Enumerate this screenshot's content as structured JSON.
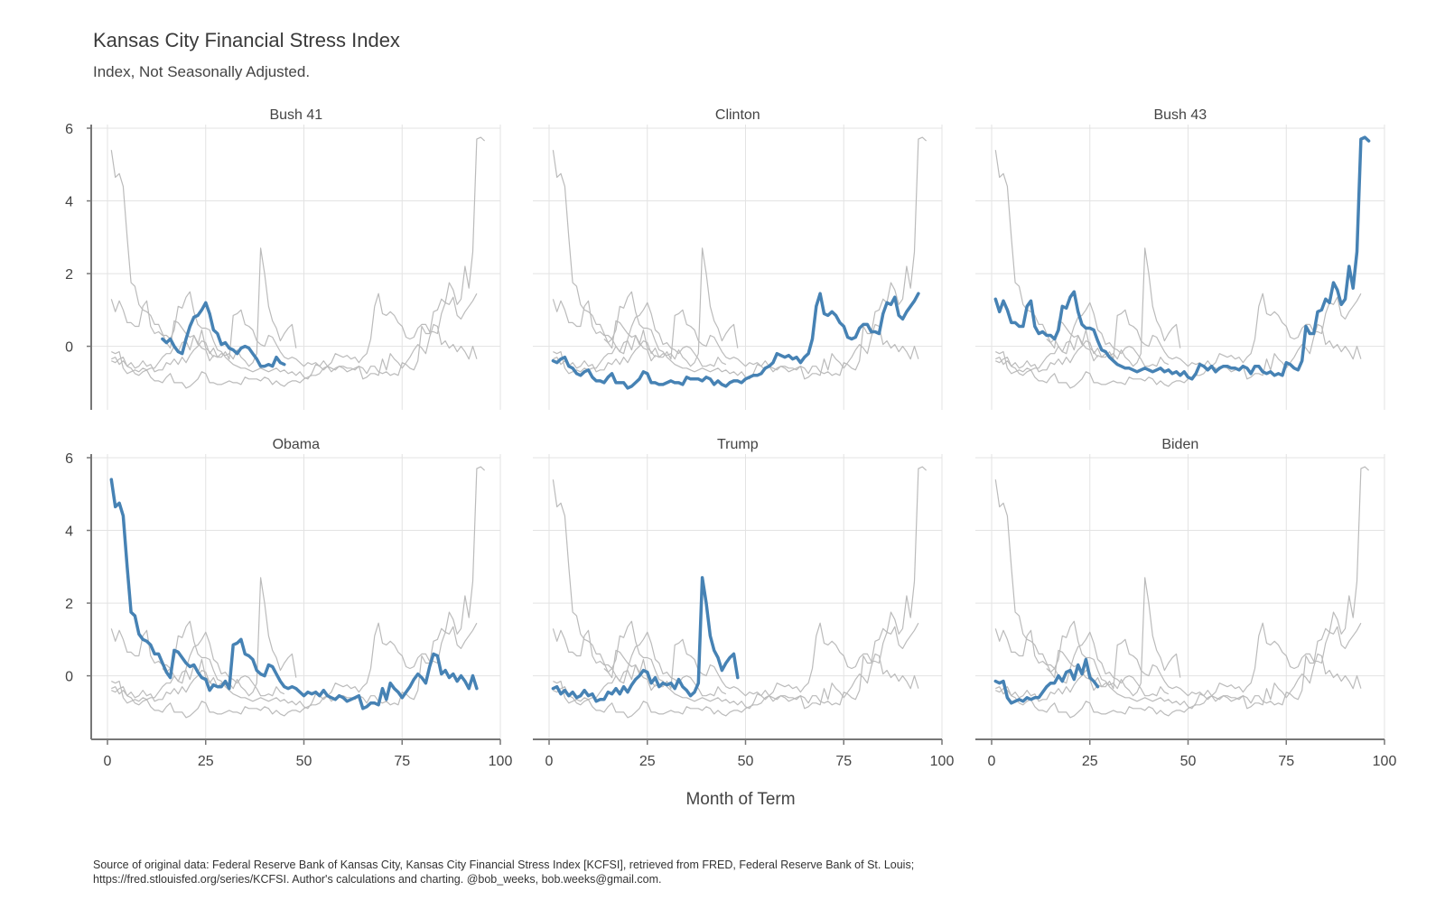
{
  "chart_data": {
    "type": "line",
    "title": "Kansas City Financial Stress Index",
    "subtitle": "Index, Not Seasonally Adjusted.",
    "xlabel": "Month of Term",
    "ylabel": "",
    "xlim": [
      0,
      100
    ],
    "ylim": [
      -1.5,
      6
    ],
    "xticks": [
      0,
      25,
      50,
      75,
      100
    ],
    "yticks": [
      0,
      2,
      4,
      6
    ],
    "grid": true,
    "highlight_color": "#4682b4",
    "context_color": "#bbbbbb",
    "panels": [
      "Bush 41",
      "Clinton",
      "Bush 43",
      "Obama",
      "Trump",
      "Biden"
    ],
    "series": [
      {
        "name": "Bush 41",
        "x_start": 14,
        "values": [
          0.2,
          0.1,
          0.2,
          0.0,
          -0.15,
          -0.2,
          0.2,
          0.55,
          0.8,
          0.85,
          1.0,
          1.2,
          0.9,
          0.45,
          0.35,
          0.05,
          0.1,
          -0.05,
          -0.1,
          -0.2,
          -0.05,
          0.0,
          -0.05,
          -0.2,
          -0.35,
          -0.55,
          -0.55,
          -0.5,
          -0.55,
          -0.3,
          -0.45,
          -0.5
        ]
      },
      {
        "name": "Clinton",
        "x_start": 1,
        "values": [
          -0.4,
          -0.45,
          -0.35,
          -0.3,
          -0.55,
          -0.6,
          -0.75,
          -0.8,
          -0.7,
          -0.65,
          -0.85,
          -0.95,
          -0.95,
          -1.0,
          -0.85,
          -0.75,
          -1.0,
          -1.0,
          -1.0,
          -1.15,
          -1.1,
          -1.0,
          -0.9,
          -0.7,
          -0.75,
          -1.0,
          -1.0,
          -1.05,
          -1.05,
          -1.0,
          -0.95,
          -1.0,
          -1.0,
          -1.05,
          -0.85,
          -0.9,
          -0.9,
          -0.9,
          -0.95,
          -0.85,
          -0.9,
          -1.05,
          -0.95,
          -1.05,
          -1.1,
          -1.0,
          -0.95,
          -0.95,
          -1.0,
          -0.9,
          -0.85,
          -0.8,
          -0.8,
          -0.75,
          -0.6,
          -0.55,
          -0.45,
          -0.2,
          -0.25,
          -0.3,
          -0.25,
          -0.35,
          -0.3,
          -0.45,
          -0.3,
          -0.2,
          0.2,
          1.1,
          1.45,
          0.9,
          0.85,
          0.95,
          0.85,
          0.65,
          0.55,
          0.25,
          0.2,
          0.25,
          0.5,
          0.6,
          0.6,
          0.4,
          0.4,
          0.35,
          0.9,
          1.2,
          1.15,
          1.35,
          0.85,
          0.75,
          0.95,
          1.1,
          1.25,
          1.45
        ]
      },
      {
        "name": "Bush 43",
        "x_start": 1,
        "values": [
          1.3,
          0.95,
          1.25,
          1.0,
          0.65,
          0.65,
          0.55,
          0.55,
          1.1,
          1.25,
          0.55,
          0.35,
          0.4,
          0.3,
          0.3,
          0.2,
          0.45,
          1.1,
          1.05,
          1.35,
          1.5,
          0.95,
          0.6,
          0.5,
          0.5,
          0.45,
          0.15,
          -0.1,
          -0.15,
          -0.3,
          -0.4,
          -0.5,
          -0.55,
          -0.6,
          -0.6,
          -0.65,
          -0.7,
          -0.65,
          -0.6,
          -0.65,
          -0.7,
          -0.65,
          -0.6,
          -0.7,
          -0.65,
          -0.75,
          -0.7,
          -0.8,
          -0.7,
          -0.85,
          -0.9,
          -0.75,
          -0.5,
          -0.55,
          -0.65,
          -0.55,
          -0.7,
          -0.6,
          -0.55,
          -0.55,
          -0.6,
          -0.6,
          -0.65,
          -0.55,
          -0.6,
          -0.75,
          -0.55,
          -0.55,
          -0.7,
          -0.75,
          -0.7,
          -0.8,
          -0.75,
          -0.8,
          -0.45,
          -0.5,
          -0.6,
          -0.65,
          -0.4,
          0.55,
          0.35,
          0.35,
          0.95,
          1.0,
          1.3,
          1.2,
          1.75,
          1.55,
          1.15,
          1.3,
          2.2,
          1.6,
          2.6,
          5.7,
          5.75,
          5.65
        ]
      },
      {
        "name": "Obama",
        "x_start": 1,
        "values": [
          5.4,
          4.65,
          4.75,
          4.4,
          3.0,
          1.75,
          1.65,
          1.15,
          1.0,
          0.95,
          0.85,
          0.6,
          0.6,
          0.35,
          0.1,
          -0.05,
          0.7,
          0.65,
          0.5,
          0.35,
          0.25,
          0.3,
          0.1,
          -0.05,
          -0.1,
          -0.4,
          -0.25,
          -0.3,
          -0.3,
          -0.15,
          -0.35,
          0.85,
          0.9,
          1.0,
          0.6,
          0.55,
          0.45,
          0.15,
          0.05,
          0.0,
          0.3,
          0.25,
          0.05,
          -0.15,
          -0.3,
          -0.35,
          -0.3,
          -0.35,
          -0.45,
          -0.55,
          -0.45,
          -0.5,
          -0.45,
          -0.55,
          -0.4,
          -0.55,
          -0.6,
          -0.65,
          -0.55,
          -0.6,
          -0.7,
          -0.65,
          -0.6,
          -0.55,
          -0.9,
          -0.85,
          -0.75,
          -0.75,
          -0.8,
          -0.35,
          -0.65,
          -0.2,
          -0.35,
          -0.45,
          -0.6,
          -0.45,
          -0.3,
          -0.1,
          0.05,
          -0.05,
          -0.2,
          0.25,
          0.6,
          0.55,
          0.05,
          0.15,
          -0.05,
          0.05,
          -0.15,
          0.0,
          -0.15,
          -0.35,
          0.0,
          -0.35
        ]
      },
      {
        "name": "Trump",
        "x_start": 1,
        "values": [
          -0.35,
          -0.3,
          -0.5,
          -0.4,
          -0.55,
          -0.45,
          -0.6,
          -0.55,
          -0.4,
          -0.55,
          -0.5,
          -0.7,
          -0.65,
          -0.65,
          -0.45,
          -0.5,
          -0.35,
          -0.5,
          -0.3,
          -0.45,
          -0.25,
          -0.1,
          0.0,
          0.15,
          0.1,
          -0.2,
          -0.05,
          -0.3,
          -0.2,
          -0.25,
          -0.2,
          -0.35,
          -0.1,
          -0.3,
          -0.4,
          -0.55,
          -0.45,
          -0.2,
          2.7,
          2.0,
          1.1,
          0.7,
          0.5,
          0.15,
          0.35,
          0.5,
          0.6,
          -0.05
        ]
      },
      {
        "name": "Biden",
        "x_start": 1,
        "values": [
          -0.15,
          -0.2,
          -0.15,
          -0.6,
          -0.75,
          -0.7,
          -0.65,
          -0.7,
          -0.6,
          -0.65,
          -0.6,
          -0.6,
          -0.45,
          -0.3,
          -0.2,
          -0.2,
          0.0,
          -0.15,
          0.1,
          0.15,
          -0.1,
          0.3,
          0.05,
          0.45,
          -0.05,
          -0.15,
          -0.3
        ]
      }
    ]
  },
  "caption_line1": "Source of original data: Federal Reserve Bank of Kansas City, Kansas City Financial Stress Index [KCFSI], retrieved from FRED, Federal Reserve Bank of St. Louis;",
  "caption_line2": "https://fred.stlouisfed.org/series/KCFSI. Author's calculations and charting. @bob_weeks, bob.weeks@gmail.com."
}
